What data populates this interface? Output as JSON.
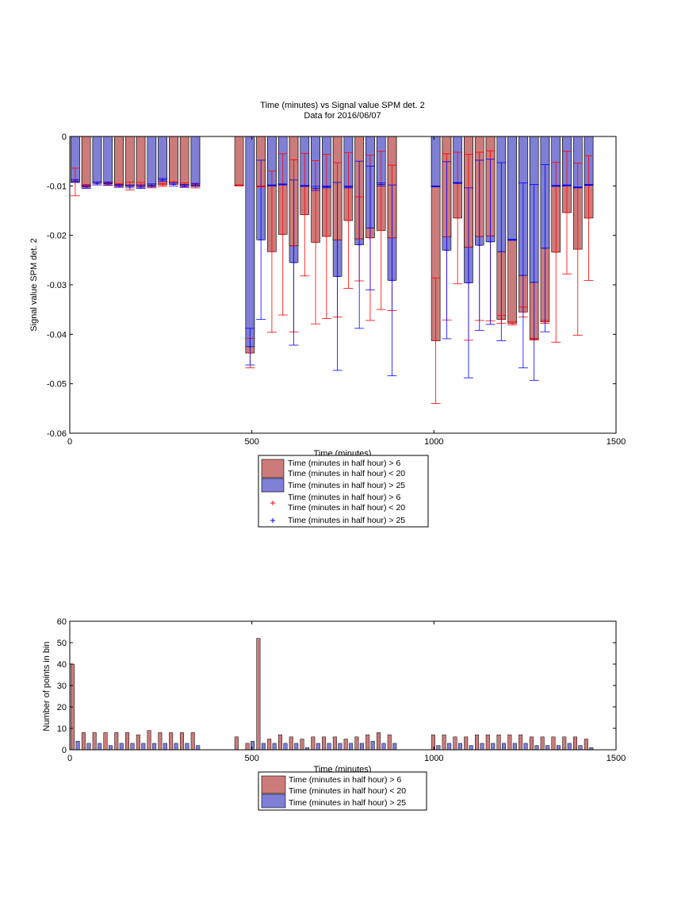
{
  "chart_data": [
    {
      "type": "bar",
      "title": "Time (minutes) vs Signal value SPM det. 2",
      "subtitle": "Data for 2016/06/07",
      "xlabel": "Time (minutes)",
      "ylabel": "Signal value SPM det. 2",
      "xlim": [
        0,
        1500
      ],
      "ylim": [
        -0.06,
        0
      ],
      "xticks": [
        0,
        500,
        1000,
        1500
      ],
      "yticks": [
        0,
        -0.01,
        -0.02,
        -0.03,
        -0.04,
        -0.05,
        -0.06
      ],
      "xtick_labels": [
        "0",
        "500",
        "1000",
        "1500"
      ],
      "ytick_labels": [
        "0",
        "-0.01",
        "-0.02",
        "-0.03",
        "-0.04",
        "-0.05",
        "-0.06"
      ],
      "grid": false,
      "legend_position": "below",
      "colors": {
        "red_bar": "#cc7b7b",
        "blue_bar": "#7f7fd5",
        "red_err": "#ff0000",
        "blue_err": "#0000ff"
      },
      "legend": [
        {
          "symbol": "red-bar",
          "label": [
            "Time (minutes in half hour) > 6",
            "Time (minutes in half hour) < 20"
          ]
        },
        {
          "symbol": "blue-bar",
          "label": [
            "Time (minutes in half hour) > 25"
          ]
        },
        {
          "symbol": "red-plus",
          "label": [
            "Time (minutes in half hour) > 6",
            "Time (minutes in half hour) < 20"
          ]
        },
        {
          "symbol": "blue-plus",
          "label": [
            "Time (minutes in half hour) > 25"
          ]
        }
      ],
      "x": [
        15,
        45,
        75,
        105,
        135,
        165,
        195,
        225,
        255,
        285,
        315,
        345,
        375,
        405,
        435,
        465,
        495,
        525,
        555,
        585,
        615,
        645,
        675,
        705,
        735,
        765,
        795,
        825,
        855,
        885,
        915,
        945,
        975,
        1005,
        1035,
        1065,
        1095,
        1125,
        1155,
        1185,
        1215,
        1245,
        1275,
        1305,
        1335,
        1365,
        1395,
        1425
      ],
      "series": [
        {
          "name": "Time (minutes in half hour) > 6 / < 20",
          "values": [
            -0.0092,
            -0.01,
            -0.0095,
            -0.0096,
            -0.0098,
            -0.01,
            -0.0098,
            -0.01,
            -0.0098,
            -0.0094,
            -0.0098,
            -0.01,
            null,
            null,
            null,
            -0.0099,
            -0.0438,
            -0.0101,
            -0.0233,
            -0.0198,
            -0.0221,
            -0.0158,
            -0.0214,
            -0.0202,
            -0.0209,
            -0.017,
            -0.0207,
            -0.0205,
            -0.019,
            -0.0205,
            null,
            null,
            null,
            -0.0413,
            -0.0203,
            -0.0165,
            -0.0224,
            -0.0202,
            -0.0201,
            -0.037,
            -0.0378,
            -0.0355,
            -0.041,
            -0.0375,
            -0.0234,
            -0.0154,
            -0.0228,
            -0.0165
          ],
          "error": [
            0.0028,
            0.0003,
            0.0003,
            0.0003,
            0.0003,
            0.0008,
            0.0005,
            0.0004,
            0.0003,
            0.0003,
            0.0004,
            0.0004,
            null,
            null,
            null,
            0.0001,
            0.003,
            0.0001,
            0.0163,
            0.0163,
            0.0174,
            0.0124,
            0.0165,
            0.0166,
            0.0156,
            0.0137,
            0.0085,
            0.0167,
            0.016,
            0.0147,
            null,
            null,
            null,
            0.0127,
            0.0168,
            0.0133,
            0.0188,
            0.017,
            0.0172,
            0.0008,
            0.0003,
            0.001,
            0.0002,
            0.0003,
            0.0182,
            0.0124,
            0.0174,
            0.0126
          ]
        },
        {
          "name": "Time (minutes in half hour) > 25",
          "values": [
            -0.009,
            -0.0102,
            -0.0095,
            -0.0095,
            -0.01,
            -0.0101,
            -0.0102,
            -0.0099,
            -0.0088,
            -0.0097,
            -0.01,
            -0.0098,
            null,
            null,
            null,
            null,
            -0.0425,
            -0.0209,
            -0.0099,
            -0.0097,
            -0.0255,
            -0.01,
            -0.0105,
            -0.0102,
            -0.0283,
            -0.0102,
            -0.0219,
            -0.0185,
            -0.0097,
            -0.0291,
            null,
            null,
            null,
            -0.0101,
            -0.023,
            -0.0094,
            -0.0296,
            -0.022,
            -0.0213,
            -0.0233,
            -0.0209,
            -0.0281,
            -0.0295,
            -0.0226,
            -0.01,
            -0.0099,
            -0.0103,
            -0.0098
          ],
          "error": [
            0.0003,
            0.0003,
            0.0003,
            0.0003,
            0.0003,
            0.0003,
            0.0003,
            0.0003,
            0.0003,
            0.0003,
            0.0003,
            0.0003,
            null,
            null,
            null,
            null,
            0.0037,
            0.0161,
            0.0001,
            0.0001,
            0.0167,
            0.0001,
            0.0004,
            0.0002,
            0.019,
            0.0002,
            0.0169,
            0.0125,
            0.0003,
            0.0193,
            null,
            null,
            null,
            0.0001,
            0.0179,
            0.0001,
            0.0192,
            0.0172,
            0.0167,
            0.018,
            0.0001,
            0.0187,
            0.0198,
            0.0169,
            0.0001,
            0.0001,
            0.0001,
            0.0001
          ]
        }
      ]
    },
    {
      "type": "bar",
      "xlabel": "Time (minutes)",
      "ylabel": "Number of points in bin",
      "xlim": [
        0,
        1500
      ],
      "ylim": [
        0,
        60
      ],
      "xticks": [
        0,
        500,
        1000,
        1500
      ],
      "yticks": [
        0,
        10,
        20,
        30,
        40,
        50,
        60
      ],
      "xtick_labels": [
        "0",
        "500",
        "1000",
        "1500"
      ],
      "ytick_labels": [
        "0",
        "10",
        "20",
        "30",
        "40",
        "50",
        "60"
      ],
      "grid": false,
      "legend_position": "below",
      "colors": {
        "red_bar": "#cc7b7b",
        "blue_bar": "#7f7fd5"
      },
      "legend": [
        {
          "symbol": "red-bar",
          "label": [
            "Time (minutes in half hour) > 6",
            "Time (minutes in half hour) < 20"
          ]
        },
        {
          "symbol": "blue-bar",
          "label": [
            "Time (minutes in half hour) > 25"
          ]
        }
      ],
      "x": [
        15,
        45,
        75,
        105,
        135,
        165,
        195,
        225,
        255,
        285,
        315,
        345,
        375,
        405,
        435,
        465,
        495,
        525,
        555,
        585,
        615,
        645,
        675,
        705,
        735,
        765,
        795,
        825,
        855,
        885,
        915,
        945,
        975,
        1005,
        1035,
        1065,
        1095,
        1125,
        1155,
        1185,
        1215,
        1245,
        1275,
        1305,
        1335,
        1365,
        1395,
        1425
      ],
      "series": [
        {
          "name": "Time (minutes in half hour) > 6 / < 20",
          "values": [
            40,
            8,
            8,
            8,
            8,
            8,
            7,
            9,
            8,
            8,
            8,
            8,
            0,
            0,
            0,
            6,
            3,
            52,
            5,
            7,
            6,
            5,
            6,
            6,
            6,
            5,
            6,
            7,
            8,
            7,
            0,
            0,
            0,
            7,
            7,
            6,
            6,
            7,
            7,
            7,
            7,
            7,
            6,
            6,
            6,
            6,
            6,
            5
          ]
        },
        {
          "name": "Time (minutes in half hour) > 25",
          "values": [
            4,
            3,
            3,
            2,
            3,
            3,
            3,
            3,
            3,
            3,
            3,
            2,
            0,
            0,
            0,
            0,
            4,
            3,
            3,
            3,
            3,
            1,
            3,
            3,
            3,
            3,
            3,
            4,
            3,
            3,
            0,
            0,
            0,
            2,
            3,
            3,
            2,
            3,
            3,
            3,
            3,
            3,
            2,
            2,
            2,
            3,
            2,
            1
          ]
        }
      ]
    }
  ]
}
